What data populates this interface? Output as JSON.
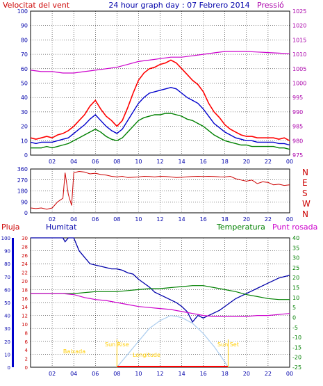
{
  "header": {
    "left_label": "Velocitat del vent",
    "title": "24 hour graph day : 07 Febrero 2014",
    "right_label": "Pressió"
  },
  "panel1_labels": [
    "",
    "",
    ""
  ],
  "panel3": {
    "left_label": "Pluja",
    "humidity_label": "Humitat",
    "temp_label": "Temperatura",
    "dew_label": "Punt rosada",
    "markers": [
      "Sun Rise",
      "Sun Set"
    ],
    "annotations": [
      "Baixada",
      "Longitude"
    ]
  },
  "colors": {
    "wind_gust": "#ff0000",
    "wind_avg": "#0000cc",
    "wind_min": "#008000",
    "pressure": "#cc00cc",
    "direction": "#cc0000",
    "humidity": "#0000aa",
    "temperature": "#008000",
    "dew_point": "#cc00cc",
    "solar": "#aaccee",
    "rain": "#ff0000",
    "annotation": "#ffcc00",
    "axis_text_blue": "#0000aa",
    "axis_text_red": "#cc0000",
    "axis_text_magenta": "#aa00aa",
    "axis_text_green": "#008000"
  },
  "chart_data": [
    {
      "type": "line",
      "x_ticks": [
        "02",
        "04",
        "06",
        "08",
        "10",
        "12",
        "14",
        "16",
        "18",
        "20",
        "22",
        "00"
      ],
      "y_left_ticks": [
        "0",
        "10",
        "20",
        "30",
        "40",
        "50",
        "60",
        "70",
        "80",
        "90",
        "100"
      ],
      "y_right_ticks": [
        "975",
        "980",
        "985",
        "990",
        "995",
        "1000",
        "1005",
        "1010",
        "1015",
        "1020",
        "1025"
      ],
      "ylim_left": [
        0,
        100
      ],
      "ylim_right": [
        975,
        1025
      ],
      "xlim": [
        0,
        24
      ],
      "series": [
        {
          "color": "#ff0000",
          "x": [
            0,
            0.5,
            1,
            1.5,
            2,
            2.5,
            3,
            3.5,
            4,
            4.5,
            5,
            5.5,
            6,
            6.5,
            7,
            7.5,
            8,
            8.5,
            9,
            9.5,
            10,
            10.5,
            11,
            11.5,
            12,
            12.5,
            13,
            13.5,
            14,
            14.5,
            15,
            15.5,
            16,
            16.5,
            17,
            17.5,
            18,
            18.5,
            19,
            19.5,
            20,
            20.5,
            21,
            21.5,
            22,
            22.5,
            23,
            23.5,
            24
          ],
          "y": [
            12,
            11,
            12,
            13,
            12,
            14,
            15,
            17,
            20,
            24,
            28,
            34,
            38,
            32,
            27,
            24,
            20,
            24,
            33,
            43,
            52,
            57,
            60,
            61,
            63,
            64,
            66,
            64,
            60,
            56,
            52,
            49,
            44,
            36,
            30,
            26,
            21,
            18,
            16,
            14,
            13,
            13,
            12,
            12,
            12,
            12,
            11,
            12,
            10
          ]
        },
        {
          "color": "#0000cc",
          "x": [
            0,
            0.5,
            1,
            1.5,
            2,
            2.5,
            3,
            3.5,
            4,
            4.5,
            5,
            5.5,
            6,
            6.5,
            7,
            7.5,
            8,
            8.5,
            9,
            9.5,
            10,
            10.5,
            11,
            11.5,
            12,
            12.5,
            13,
            13.5,
            14,
            14.5,
            15,
            15.5,
            16,
            16.5,
            17,
            17.5,
            18,
            18.5,
            19,
            19.5,
            20,
            20.5,
            21,
            21.5,
            22,
            22.5,
            23,
            23.5,
            24
          ],
          "y": [
            9,
            8,
            9,
            9,
            9,
            10,
            11,
            12,
            15,
            18,
            21,
            25,
            28,
            24,
            20,
            17,
            15,
            18,
            24,
            30,
            36,
            40,
            43,
            44,
            45,
            46,
            47,
            46,
            43,
            40,
            38,
            36,
            32,
            27,
            22,
            19,
            16,
            14,
            12,
            11,
            10,
            10,
            9,
            9,
            9,
            9,
            8,
            8,
            7
          ]
        },
        {
          "color": "#008000",
          "x": [
            0,
            0.5,
            1,
            1.5,
            2,
            2.5,
            3,
            3.5,
            4,
            4.5,
            5,
            5.5,
            6,
            6.5,
            7,
            7.5,
            8,
            8.5,
            9,
            9.5,
            10,
            10.5,
            11,
            11.5,
            12,
            12.5,
            13,
            13.5,
            14,
            14.5,
            15,
            15.5,
            16,
            16.5,
            17,
            17.5,
            18,
            18.5,
            19,
            19.5,
            20,
            20.5,
            21,
            21.5,
            22,
            22.5,
            23,
            23.5,
            24
          ],
          "y": [
            5,
            5,
            5,
            6,
            5,
            6,
            7,
            8,
            10,
            12,
            14,
            16,
            18,
            16,
            13,
            11,
            10,
            12,
            16,
            20,
            24,
            26,
            27,
            28,
            28,
            29,
            29,
            28,
            27,
            25,
            24,
            22,
            20,
            17,
            14,
            12,
            10,
            9,
            8,
            7,
            7,
            6,
            6,
            6,
            6,
            6,
            5,
            5,
            4
          ]
        },
        {
          "color": "#cc00cc",
          "x": [
            0,
            1,
            2,
            3,
            4,
            5,
            6,
            7,
            8,
            9,
            10,
            11,
            12,
            13,
            14,
            15,
            16,
            17,
            18,
            19,
            20,
            21,
            22,
            23,
            24
          ],
          "y": [
            1004.5,
            1004,
            1004,
            1003.5,
            1003.5,
            1004,
            1004.5,
            1005,
            1005.5,
            1006.5,
            1007.5,
            1008,
            1008.5,
            1009,
            1009,
            1009.5,
            1010,
            1010.5,
            1011,
            1011,
            1011,
            1010.8,
            1010.6,
            1010.4,
            1010.2
          ]
        }
      ]
    },
    {
      "type": "scatter",
      "x_ticks": [
        "02",
        "04",
        "06",
        "08",
        "10",
        "12",
        "14",
        "16",
        "18",
        "20",
        "22",
        "00"
      ],
      "y_left_ticks": [
        "0",
        "90",
        "180",
        "270",
        "360"
      ],
      "y_right_ticks": [
        "N",
        "W",
        "S",
        "E",
        "N"
      ],
      "ylim": [
        0,
        360
      ],
      "xlim": [
        0,
        24
      ],
      "series": [
        {
          "color": "#cc0000",
          "x": [
            0,
            0.5,
            1,
            1.5,
            2,
            2.5,
            3,
            3.2,
            3.5,
            3.8,
            4,
            4.5,
            5,
            5.5,
            6,
            6.5,
            7,
            7.5,
            8,
            8.5,
            9,
            9.5,
            10,
            10.5,
            11,
            11.5,
            12,
            12.5,
            13,
            13.5,
            14,
            14.5,
            15,
            15.5,
            16,
            16.5,
            17,
            17.5,
            18,
            18.5,
            19,
            19.5,
            20,
            20.5,
            21,
            21.5,
            22,
            22.5,
            23,
            23.5,
            24
          ],
          "y": [
            40,
            35,
            40,
            30,
            40,
            90,
            120,
            330,
            150,
            60,
            330,
            340,
            335,
            320,
            325,
            315,
            310,
            300,
            295,
            300,
            290,
            292,
            295,
            300,
            298,
            295,
            300,
            298,
            295,
            290,
            292,
            296,
            298,
            300,
            298,
            300,
            298,
            296,
            295,
            300,
            280,
            270,
            260,
            270,
            240,
            255,
            250,
            230,
            235,
            225,
            230
          ]
        }
      ]
    },
    {
      "type": "line",
      "x_ticks": [
        "02",
        "04",
        "06",
        "08",
        "10",
        "12",
        "14",
        "16",
        "18",
        "20",
        "22",
        "00"
      ],
      "y_rain_ticks": [
        "0",
        "2",
        "4",
        "6",
        "8",
        "10",
        "12",
        "14",
        "16",
        "18",
        "20",
        "22",
        "24",
        "26",
        "28",
        "30"
      ],
      "y_hum_ticks": [
        "0",
        "10",
        "20",
        "30",
        "40",
        "50",
        "60",
        "70",
        "80",
        "90",
        "100"
      ],
      "y_temp_ticks": [
        "-25",
        "-20",
        "-15",
        "-10",
        "-5",
        "0",
        "5",
        "10",
        "15",
        "20",
        "25",
        "30",
        "35",
        "40"
      ],
      "ylim_hum": [
        0,
        100
      ],
      "ylim_temp": [
        -25,
        40
      ],
      "xlim": [
        0,
        24
      ],
      "series": [
        {
          "color": "#0000aa",
          "x": [
            0,
            1,
            2,
            3,
            3.2,
            3.5,
            4,
            4.5,
            5,
            5.5,
            6,
            6.5,
            7,
            7.5,
            8,
            8.5,
            9,
            9.5,
            10,
            10.5,
            11,
            11.5,
            12,
            12.5,
            13,
            13.5,
            14,
            14.5,
            15,
            15.5,
            16,
            16.5,
            17,
            17.5,
            18,
            18.5,
            19,
            19.5,
            20,
            20.5,
            21,
            21.5,
            22,
            22.5,
            23,
            23.5,
            24
          ],
          "y": [
            100,
            100,
            100,
            100,
            97,
            100,
            100,
            90,
            85,
            80,
            79,
            78,
            77,
            76,
            76,
            75,
            73,
            72,
            68,
            65,
            62,
            58,
            56,
            54,
            52,
            50,
            47,
            43,
            35,
            40,
            38,
            40,
            42,
            44,
            47,
            50,
            53,
            55,
            57,
            59,
            61,
            63,
            65,
            67,
            69,
            70,
            71
          ]
        },
        {
          "color": "#008000",
          "x": [
            0,
            1,
            2,
            3,
            4,
            5,
            6,
            7,
            8,
            9,
            10,
            11,
            12,
            13,
            14,
            15,
            16,
            17,
            18,
            19,
            20,
            21,
            22,
            23,
            24
          ],
          "y": [
            12,
            12,
            12,
            12,
            12,
            12.5,
            13,
            13,
            13,
            13.5,
            14,
            14.5,
            14.5,
            15,
            15.5,
            16,
            16,
            15,
            14,
            13,
            11.5,
            10.5,
            9.5,
            9,
            9
          ]
        },
        {
          "color": "#cc00cc",
          "x": [
            0,
            1,
            2,
            3,
            4,
            5,
            6,
            7,
            8,
            9,
            10,
            11,
            12,
            13,
            14,
            15,
            16,
            17,
            18,
            19,
            20,
            21,
            22,
            23,
            24
          ],
          "y": [
            12,
            12,
            12,
            12,
            11.5,
            10,
            9,
            8.5,
            7.5,
            6.5,
            5.5,
            5,
            4.5,
            4,
            3,
            2,
            1,
            0.5,
            0.5,
            0.5,
            0.5,
            1,
            1,
            1.5,
            2
          ]
        },
        {
          "color": "#aaccee",
          "x": [
            8,
            9,
            10,
            11,
            12,
            13,
            14,
            15,
            16,
            17,
            18,
            18.3
          ],
          "y": [
            0,
            2.5,
            5,
            7.5,
            9,
            10,
            9.6,
            8.5,
            6.5,
            4,
            1,
            0
          ]
        }
      ]
    }
  ]
}
